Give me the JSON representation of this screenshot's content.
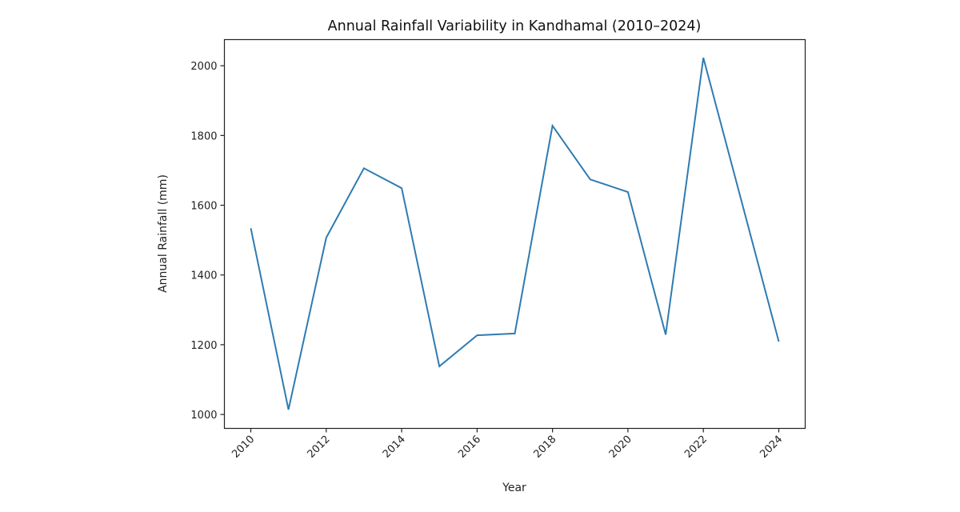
{
  "chart_data": {
    "type": "line",
    "title": "Annual Rainfall Variability in Kandhamal (2010–2024)",
    "xlabel": "Year",
    "ylabel": "Annual Rainfall (mm)",
    "x": [
      2010,
      2011,
      2012,
      2013,
      2014,
      2015,
      2016,
      2017,
      2018,
      2019,
      2020,
      2021,
      2022,
      2023,
      2024
    ],
    "series": [
      {
        "name": "Annual Rainfall",
        "color": "#2f7bb0",
        "values": [
          1534,
          1014,
          1507,
          1706,
          1649,
          1138,
          1227,
          1232,
          1828,
          1674,
          1638,
          1229,
          2023,
          1616,
          1209
        ]
      }
    ],
    "xticks": [
      "2010",
      "2012",
      "2014",
      "2016",
      "2018",
      "2020",
      "2022",
      "2024"
    ],
    "yticks": [
      "1000",
      "1200",
      "1400",
      "1600",
      "1800",
      "2000"
    ],
    "xlim": [
      2009.3,
      2024.7
    ],
    "ylim": [
      960,
      2075
    ],
    "xtick_rotation_deg": 45,
    "grid": false,
    "legend": "none"
  }
}
